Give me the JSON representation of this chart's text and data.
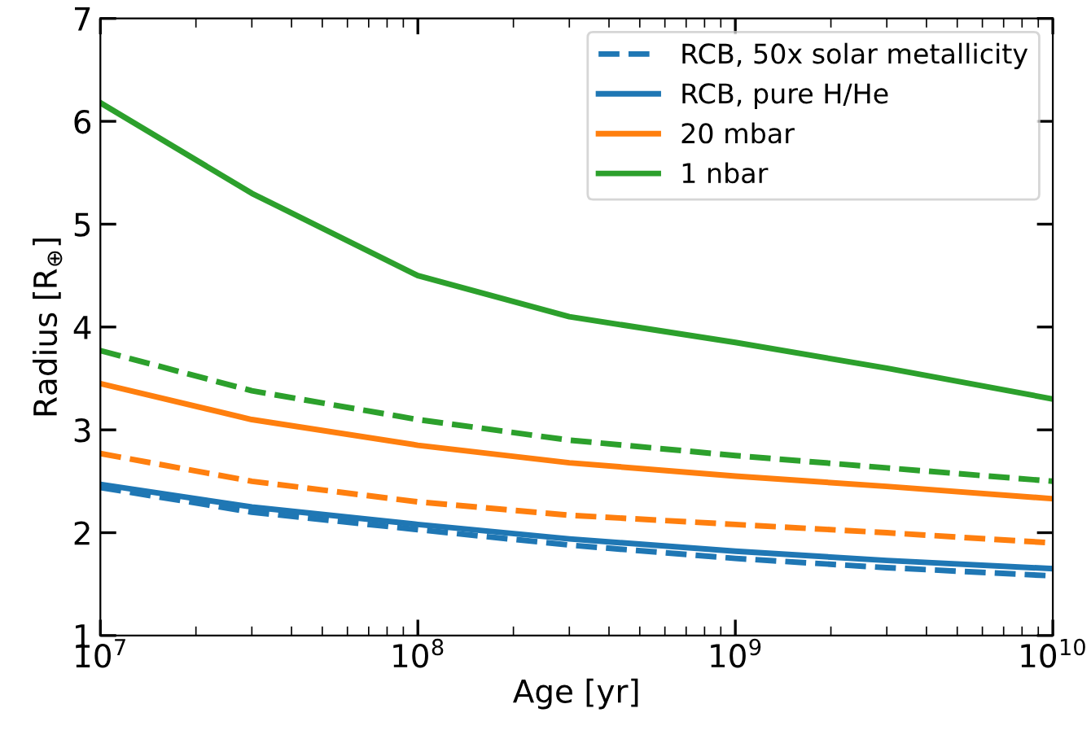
{
  "chart_data": {
    "type": "line",
    "xlabel": "Age [yr]",
    "ylabel": "Radius [R$_{⊕}$]",
    "log": "x",
    "x": [
      10000000.0,
      30000000.0,
      100000000.0,
      300000000.0,
      1000000000.0,
      3000000000.0,
      10000000000.0
    ],
    "xlim": [
      10000000.0,
      10000000000.0
    ],
    "ylim": [
      1,
      7
    ],
    "xticks": [
      {
        "value": 10000000.0,
        "label": "10$^{7}$"
      },
      {
        "value": 100000000.0,
        "label": "10$^{8}$"
      },
      {
        "value": 1000000000.0,
        "label": "10$^{9}$"
      },
      {
        "value": 10000000000.0,
        "label": "10$^{10}$"
      }
    ],
    "yticks": [
      1,
      2,
      3,
      4,
      5,
      6,
      7
    ],
    "legend": "top right",
    "grid": false,
    "series": [
      {
        "name": "RCB, 50x solar metallicity",
        "color": "#1f77b4",
        "line_style": "dashed",
        "values": [
          2.44,
          2.2,
          2.03,
          1.88,
          1.75,
          1.66,
          1.58
        ]
      },
      {
        "name": "RCB, pure H/He",
        "color": "#1f77b4",
        "line_style": "solid",
        "values": [
          2.47,
          2.25,
          2.08,
          1.94,
          1.82,
          1.73,
          1.65
        ]
      },
      {
        "name": "20 mbar",
        "color": "#ff7f0e",
        "line_style": "solid",
        "values": [
          3.45,
          3.1,
          2.85,
          2.68,
          2.55,
          2.45,
          2.33
        ]
      },
      {
        "name": "1 nbar",
        "color": "#2ca02c",
        "line_style": "solid",
        "values": [
          6.18,
          5.3,
          4.5,
          4.1,
          3.85,
          3.6,
          3.3
        ]
      },
      {
        "color": "#ff7f0e",
        "line_style": "dashed",
        "values": [
          2.77,
          2.5,
          2.3,
          2.17,
          2.08,
          2.0,
          1.9
        ]
      },
      {
        "color": "#2ca02c",
        "line_style": "dashed",
        "values": [
          3.77,
          3.38,
          3.1,
          2.9,
          2.75,
          2.63,
          2.5
        ]
      }
    ]
  }
}
